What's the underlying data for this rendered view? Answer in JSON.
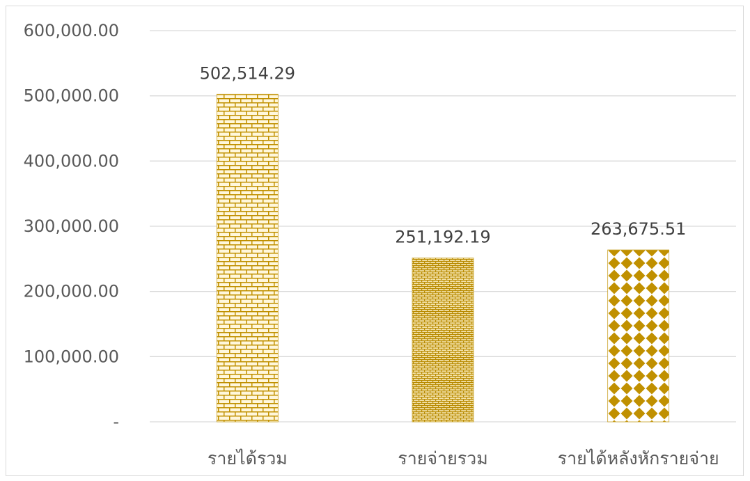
{
  "chart_data": {
    "type": "bar",
    "title": "",
    "xlabel": "",
    "ylabel": "",
    "categories": [
      "รายได้รวม",
      "รายจ่ายรวม",
      "รายได้หลังหักรายจ่าย"
    ],
    "values": [
      502514.29,
      251192.19,
      263675.51
    ],
    "value_labels": [
      "502,514.29",
      "251,192.19",
      "263,675.51"
    ],
    "ylim": [
      0,
      600000
    ],
    "y_ticks": [
      0,
      100000,
      200000,
      300000,
      400000,
      500000,
      600000
    ],
    "y_tick_labels": [
      "-",
      "100,000.00",
      "200,000.00",
      "300,000.00",
      "400,000.00",
      "500,000.00",
      "600,000.00"
    ],
    "grid": true,
    "legend": "none",
    "bar_color": "#c09000",
    "bar_patterns": [
      "brick",
      "small-brick",
      "diamond"
    ]
  }
}
